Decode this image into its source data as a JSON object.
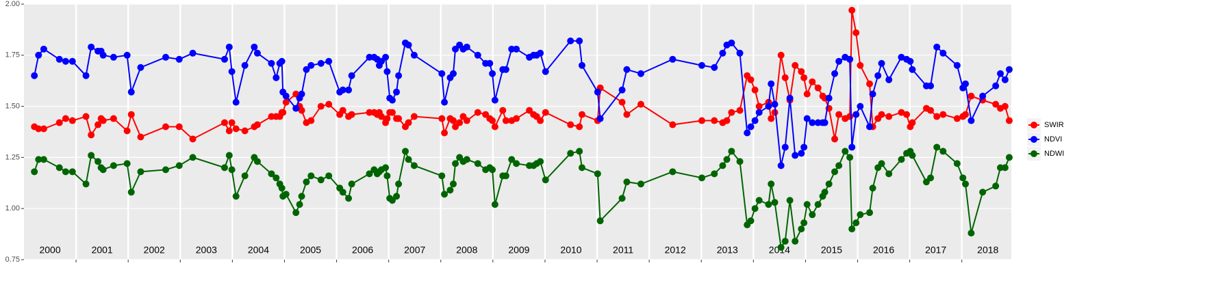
{
  "chart_data": {
    "type": "line",
    "x": [
      2000.2,
      2000.28,
      2000.38,
      2000.68,
      2000.8,
      2000.93,
      2001.19,
      2001.29,
      2001.42,
      2001.48,
      2001.52,
      2001.72,
      2001.98,
      2002.06,
      2002.24,
      2002.72,
      2002.98,
      2003.24,
      2003.85,
      2003.94,
      2003.99,
      2004.07,
      2004.24,
      2004.42,
      2004.48,
      2004.75,
      2004.84,
      2004.91,
      2004.95,
      2004.97,
      2005.03,
      2005.22,
      2005.29,
      2005.33,
      2005.42,
      2005.51,
      2005.7,
      2005.85,
      2006.06,
      2006.12,
      2006.23,
      2006.29,
      2006.63,
      2006.72,
      2006.78,
      2006.82,
      2006.86,
      2006.94,
      2006.97,
      2007.02,
      2007.07,
      2007.15,
      2007.19,
      2007.32,
      2007.38,
      2007.49,
      2008.02,
      2008.07,
      2008.18,
      2008.24,
      2008.28,
      2008.36,
      2008.43,
      2008.5,
      2008.71,
      2008.86,
      2008.94,
      2008.99,
      2009.04,
      2009.19,
      2009.25,
      2009.36,
      2009.45,
      2009.7,
      2009.78,
      2009.84,
      2009.91,
      2010.01,
      2010.49,
      2010.66,
      2010.71,
      2011.01,
      2011.06,
      2011.48,
      2011.57,
      2011.84,
      2012.45,
      2013.01,
      2013.25,
      2013.41,
      2013.49,
      2013.58,
      2013.74,
      2013.88,
      2013.95,
      2014.03,
      2014.11,
      2014.29,
      2014.34,
      2014.41,
      2014.53,
      2014.61,
      2014.7,
      2014.8,
      2014.92,
      2014.97,
      2015.03,
      2015.13,
      2015.24,
      2015.33,
      2015.37,
      2015.45,
      2015.56,
      2015.64,
      2015.76,
      2015.85,
      2015.89,
      2015.97,
      2016.05,
      2016.23,
      2016.29,
      2016.39,
      2016.46,
      2016.6,
      2016.84,
      2016.94,
      2017.01,
      2017.05,
      2017.32,
      2017.4,
      2017.52,
      2017.64,
      2017.91,
      2018.02,
      2018.07,
      2018.18,
      2018.4,
      2018.65,
      2018.74,
      2018.83,
      2018.91
    ],
    "series": [
      {
        "name": "SWIR",
        "color": "#ff0000",
        "values": [
          1.4,
          1.39,
          1.39,
          1.42,
          1.44,
          1.43,
          1.45,
          1.36,
          1.41,
          1.44,
          1.43,
          1.44,
          1.38,
          1.46,
          1.35,
          1.4,
          1.4,
          1.34,
          1.42,
          1.38,
          1.42,
          1.39,
          1.38,
          1.4,
          1.41,
          1.45,
          1.45,
          1.45,
          1.47,
          1.47,
          1.52,
          1.56,
          1.5,
          1.48,
          1.42,
          1.43,
          1.5,
          1.51,
          1.46,
          1.48,
          1.45,
          1.46,
          1.47,
          1.47,
          1.46,
          1.47,
          1.45,
          1.42,
          1.44,
          1.47,
          1.47,
          1.44,
          1.44,
          1.4,
          1.42,
          1.45,
          1.44,
          1.37,
          1.44,
          1.43,
          1.4,
          1.42,
          1.45,
          1.43,
          1.47,
          1.46,
          1.44,
          1.43,
          1.4,
          1.48,
          1.43,
          1.43,
          1.44,
          1.48,
          1.46,
          1.45,
          1.43,
          1.47,
          1.41,
          1.4,
          1.46,
          1.43,
          1.59,
          1.52,
          1.46,
          1.51,
          1.41,
          1.43,
          1.43,
          1.42,
          1.43,
          1.47,
          1.48,
          1.65,
          1.63,
          1.58,
          1.5,
          1.52,
          1.44,
          1.47,
          1.75,
          1.64,
          1.53,
          1.7,
          1.67,
          1.64,
          1.56,
          1.62,
          1.59,
          1.55,
          1.54,
          1.49,
          1.34,
          1.46,
          1.44,
          1.45,
          1.97,
          1.86,
          1.7,
          1.61,
          1.4,
          1.44,
          1.46,
          1.45,
          1.47,
          1.46,
          1.4,
          1.42,
          1.49,
          1.48,
          1.45,
          1.46,
          1.44,
          1.45,
          1.46,
          1.55,
          1.53,
          1.51,
          1.49,
          1.5,
          1.43
        ]
      },
      {
        "name": "NDVI",
        "color": "#0000ff",
        "values": [
          1.65,
          1.75,
          1.78,
          1.73,
          1.72,
          1.72,
          1.65,
          1.79,
          1.77,
          1.77,
          1.75,
          1.74,
          1.75,
          1.57,
          1.69,
          1.74,
          1.73,
          1.76,
          1.73,
          1.79,
          1.67,
          1.52,
          1.7,
          1.79,
          1.76,
          1.71,
          1.64,
          1.71,
          1.72,
          1.57,
          1.55,
          1.49,
          1.54,
          1.56,
          1.68,
          1.7,
          1.71,
          1.72,
          1.57,
          1.58,
          1.58,
          1.65,
          1.74,
          1.74,
          1.73,
          1.7,
          1.72,
          1.74,
          1.67,
          1.54,
          1.53,
          1.57,
          1.65,
          1.81,
          1.8,
          1.75,
          1.66,
          1.52,
          1.64,
          1.66,
          1.78,
          1.8,
          1.78,
          1.79,
          1.75,
          1.71,
          1.71,
          1.66,
          1.53,
          1.68,
          1.68,
          1.78,
          1.78,
          1.74,
          1.75,
          1.75,
          1.76,
          1.67,
          1.82,
          1.82,
          1.7,
          1.57,
          1.44,
          1.58,
          1.68,
          1.66,
          1.73,
          1.7,
          1.69,
          1.76,
          1.8,
          1.81,
          1.76,
          1.37,
          1.4,
          1.43,
          1.47,
          1.5,
          1.61,
          1.51,
          1.21,
          1.3,
          1.54,
          1.26,
          1.27,
          1.3,
          1.44,
          1.42,
          1.42,
          1.42,
          1.42,
          1.54,
          1.66,
          1.72,
          1.74,
          1.73,
          1.3,
          1.46,
          1.5,
          1.4,
          1.56,
          1.65,
          1.71,
          1.63,
          1.74,
          1.73,
          1.72,
          1.68,
          1.6,
          1.6,
          1.79,
          1.76,
          1.7,
          1.59,
          1.61,
          1.43,
          1.55,
          1.6,
          1.66,
          1.63,
          1.68
        ]
      },
      {
        "name": "NDWI",
        "color": "#006400",
        "values": [
          1.18,
          1.24,
          1.24,
          1.2,
          1.18,
          1.18,
          1.12,
          1.26,
          1.23,
          1.2,
          1.19,
          1.21,
          1.22,
          1.08,
          1.18,
          1.19,
          1.21,
          1.25,
          1.2,
          1.26,
          1.19,
          1.06,
          1.16,
          1.25,
          1.23,
          1.17,
          1.15,
          1.12,
          1.1,
          1.06,
          1.07,
          0.98,
          1.02,
          1.06,
          1.13,
          1.16,
          1.14,
          1.16,
          1.1,
          1.08,
          1.05,
          1.12,
          1.17,
          1.19,
          1.17,
          1.18,
          1.19,
          1.2,
          1.16,
          1.05,
          1.04,
          1.06,
          1.12,
          1.28,
          1.24,
          1.21,
          1.16,
          1.07,
          1.09,
          1.12,
          1.22,
          1.25,
          1.23,
          1.24,
          1.22,
          1.19,
          1.2,
          1.19,
          1.02,
          1.16,
          1.16,
          1.24,
          1.22,
          1.21,
          1.21,
          1.22,
          1.23,
          1.14,
          1.27,
          1.28,
          1.2,
          1.17,
          0.94,
          1.05,
          1.13,
          1.12,
          1.18,
          1.15,
          1.17,
          1.21,
          1.24,
          1.28,
          1.23,
          0.92,
          0.94,
          1.0,
          1.04,
          1.02,
          1.12,
          1.03,
          0.81,
          0.84,
          1.04,
          0.84,
          0.9,
          0.93,
          1.02,
          0.97,
          1.02,
          1.06,
          1.08,
          1.12,
          1.18,
          1.21,
          1.28,
          1.25,
          0.9,
          0.93,
          0.97,
          0.98,
          1.1,
          1.2,
          1.22,
          1.17,
          1.24,
          1.27,
          1.28,
          1.26,
          1.13,
          1.15,
          1.3,
          1.28,
          1.22,
          1.15,
          1.12,
          0.88,
          1.08,
          1.11,
          1.2,
          1.2,
          1.25
        ]
      }
    ],
    "xlim": [
      2000,
      2018.95
    ],
    "xticks": [
      {
        "value": 2000.5,
        "label": "2000"
      },
      {
        "value": 2001.5,
        "label": "2001"
      },
      {
        "value": 2002.5,
        "label": "2002"
      },
      {
        "value": 2003.5,
        "label": "2003"
      },
      {
        "value": 2004.5,
        "label": "2004"
      },
      {
        "value": 2005.5,
        "label": "2005"
      },
      {
        "value": 2006.5,
        "label": "2006"
      },
      {
        "value": 2007.5,
        "label": "2007"
      },
      {
        "value": 2008.5,
        "label": "2008"
      },
      {
        "value": 2009.5,
        "label": "2009"
      },
      {
        "value": 2010.5,
        "label": "2010"
      },
      {
        "value": 2011.5,
        "label": "2011"
      },
      {
        "value": 2012.5,
        "label": "2012"
      },
      {
        "value": 2013.5,
        "label": "2013"
      },
      {
        "value": 2014.5,
        "label": "2014"
      },
      {
        "value": 2015.5,
        "label": "2015"
      },
      {
        "value": 2016.5,
        "label": "2016"
      },
      {
        "value": 2017.5,
        "label": "2017"
      },
      {
        "value": 2018.5,
        "label": "2018"
      }
    ],
    "year_boundaries": [
      2001,
      2002,
      2003,
      2004,
      2005,
      2006,
      2007,
      2008,
      2009,
      2010,
      2011,
      2012,
      2013,
      2014,
      2015,
      2016,
      2017,
      2018
    ],
    "ylim": [
      0.75,
      2.0
    ],
    "yticks": [
      {
        "value": 0.75,
        "label": "0.75"
      },
      {
        "value": 1.0,
        "label": "1.00"
      },
      {
        "value": 1.25,
        "label": "1.25"
      },
      {
        "value": 1.5,
        "label": "1.50"
      },
      {
        "value": 1.75,
        "label": "1.75"
      },
      {
        "value": 2.0,
        "label": "2.00"
      }
    ],
    "grid": true,
    "legend": "right"
  }
}
